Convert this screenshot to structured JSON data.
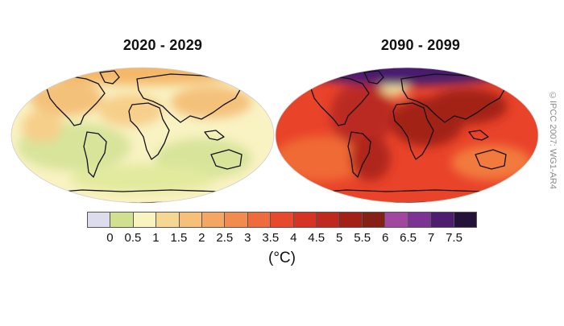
{
  "panels": [
    {
      "title": "2020 - 2029",
      "base_color": "#f9f2c2",
      "polar_color": "#f4b86a",
      "blobs": [
        {
          "color": "#d7e49a"
        },
        {
          "color": "#d7e49a"
        },
        {
          "color": "#e2ea9e"
        },
        {
          "color": "#f4c17a"
        },
        {
          "color": "#f6cf8a"
        },
        {
          "color": "#f4c17a"
        },
        {
          "color": "#f6cf8a"
        }
      ]
    },
    {
      "title": "2090 - 2099",
      "base_color": "#e9432a",
      "polar_color": "#4a1b6e",
      "blobs": [
        {
          "color": "#f06a36"
        },
        {
          "color": "#f27a3e"
        },
        {
          "color": "#bb2a20"
        },
        {
          "color": "#a32218"
        },
        {
          "color": "#a32218"
        },
        {
          "color": "#b0261c"
        },
        {
          "color": "#f6e6a0"
        }
      ]
    }
  ],
  "colorbar": {
    "colors": [
      "#dcdcec",
      "#cfe08e",
      "#f9f3c0",
      "#f6d693",
      "#f6c07a",
      "#f4a764",
      "#f18b4e",
      "#ee6b3d",
      "#e7492d",
      "#d63324",
      "#c0291d",
      "#a41f16",
      "#842015",
      "#a2479f",
      "#7c3394",
      "#4d1d70",
      "#251238"
    ],
    "ticks": [
      "0",
      "0.5",
      "1",
      "1.5",
      "2",
      "2.5",
      "3",
      "3.5",
      "4",
      "4.5",
      "5",
      "5.5",
      "6",
      "6.5",
      "7",
      "7.5"
    ],
    "unit": "(°C)"
  },
  "credit": "©IPCC 2007: WG1-AR4"
}
